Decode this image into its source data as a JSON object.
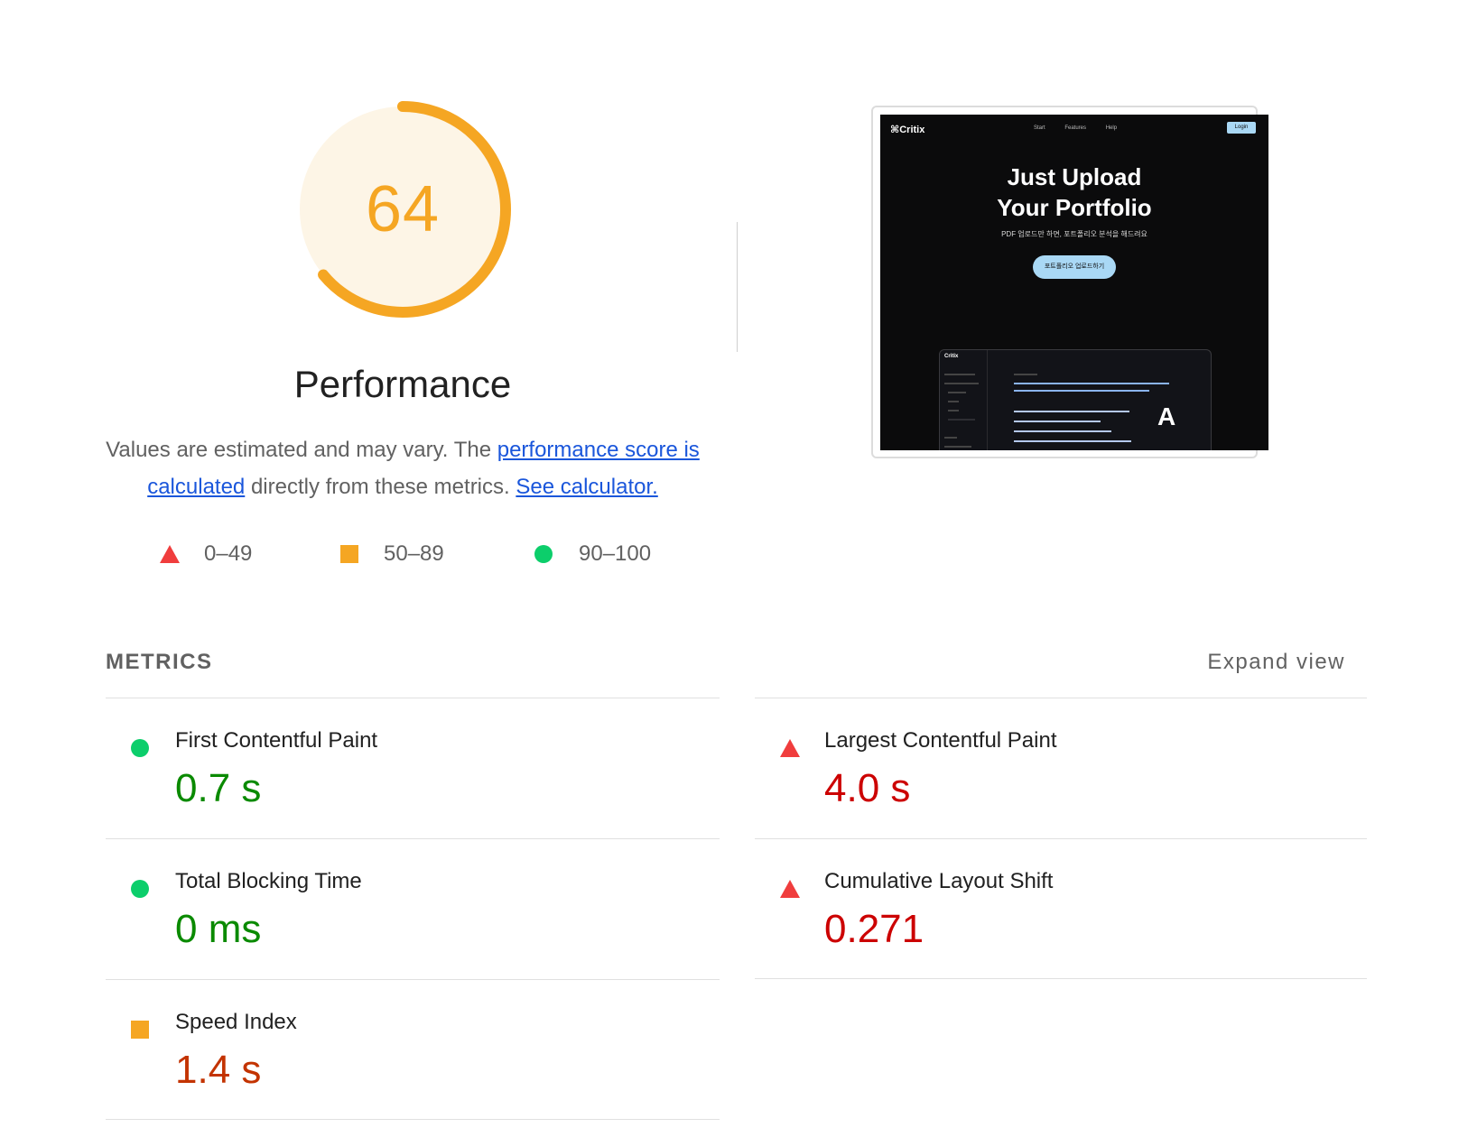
{
  "score": {
    "value": "64",
    "fraction": 0.64,
    "ring_color": "#f5a623",
    "track_color": "#fdf5e6"
  },
  "summary": {
    "title": "Performance",
    "text_before": "Values are estimated and may vary. The ",
    "link_score": "performance score is calculated",
    "text_middle": " directly from these metrics. ",
    "link_calculator": "See calculator."
  },
  "legend": [
    {
      "shape": "triangle",
      "label": "0–49",
      "color": "#f03d3d"
    },
    {
      "shape": "square",
      "label": "50–89",
      "color": "#f5a623"
    },
    {
      "shape": "circle",
      "label": "90–100",
      "color": "#0cce6b"
    }
  ],
  "screenshot": {
    "logo": "Critix",
    "nav": [
      "Start",
      "Features",
      "Help"
    ],
    "login": "Login",
    "headline_line1": "Just Upload",
    "headline_line2": "Your Portfolio",
    "subtitle": "PDF 업로드만 하면, 포트폴리오 분석을 해드려요",
    "cta": "포트폴리오 업로드하기",
    "app_logo": "Critix",
    "app_glyph": "A"
  },
  "metrics_header": {
    "label": "METRICS",
    "expand": "Expand view"
  },
  "metrics": [
    {
      "name": "First Contentful Paint",
      "value": "0.7 s",
      "status": "good"
    },
    {
      "name": "Largest Contentful Paint",
      "value": "4.0 s",
      "status": "poor"
    },
    {
      "name": "Total Blocking Time",
      "value": "0 ms",
      "status": "good"
    },
    {
      "name": "Cumulative Layout Shift",
      "value": "0.271",
      "status": "poor"
    },
    {
      "name": "Speed Index",
      "value": "1.4 s",
      "status": "average"
    }
  ]
}
